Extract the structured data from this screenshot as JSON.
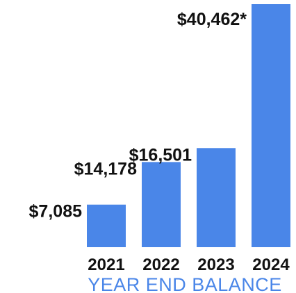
{
  "chart_data": {
    "type": "bar",
    "categories": [
      "2021",
      "2022",
      "2023",
      "2024"
    ],
    "values": [
      7085,
      14178,
      16501,
      40462
    ],
    "data_labels": [
      "$7,085",
      "$14,178",
      "$16,501",
      "$40,462*"
    ],
    "title": "YEAR END BALANCE",
    "xlabel": "",
    "ylabel": "",
    "ylim": [
      0,
      40462
    ],
    "grid": false,
    "legend": "none",
    "bar_color": "#4a86e8",
    "title_color": "#4a86e8"
  }
}
